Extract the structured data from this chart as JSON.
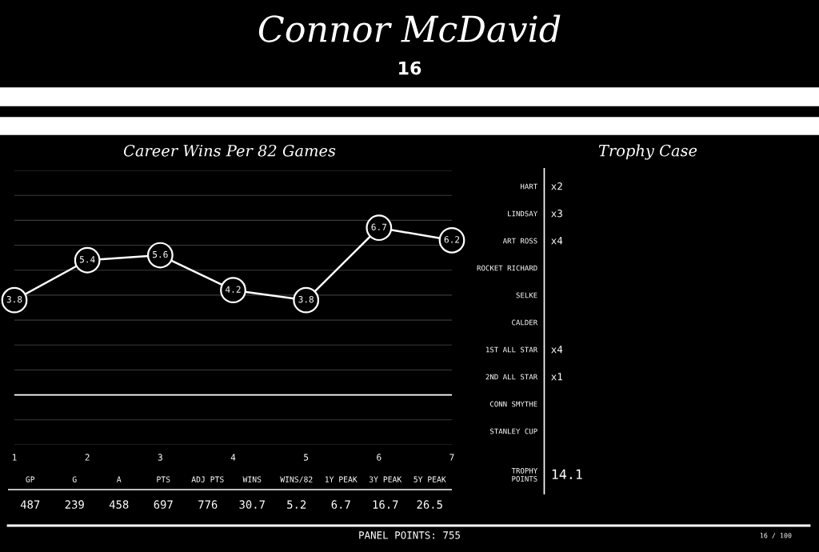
{
  "chart_data": [
    {
      "type": "other",
      "title": "Connor McDavid",
      "subtitle": "16",
      "annotations": [
        "PANEL POINTS: 755",
        "16 / 100"
      ]
    },
    {
      "type": "line",
      "title": "Career Wins Per 82 Games",
      "x": [
        1,
        2,
        3,
        4,
        5,
        6,
        7
      ],
      "values": [
        3.8,
        5.4,
        5.6,
        4.2,
        3.8,
        6.7,
        6.2
      ],
      "color": "#ffffff",
      "xlim": [
        1,
        7
      ],
      "xticks": [
        1,
        2,
        3,
        4,
        5,
        6,
        7
      ],
      "ylim": [
        -2,
        9
      ],
      "yticks": [
        {
          "value": -2,
          "label": null
        },
        {
          "value": -1,
          "label": null
        },
        {
          "value": 0,
          "label": null
        },
        {
          "value": 1,
          "label": null
        },
        {
          "value": 2,
          "label": null
        },
        {
          "value": 3,
          "label": null
        },
        {
          "value": 4,
          "label": null
        },
        {
          "value": 5,
          "label": null
        },
        {
          "value": 6,
          "label": null
        },
        {
          "value": 7,
          "label": null
        },
        {
          "value": 8,
          "label": null
        },
        {
          "value": 9,
          "label": null
        }
      ],
      "grid": "y",
      "ref_lines": [
        {
          "axis": "y",
          "value": 0,
          "label": null,
          "color": "#ffffff"
        }
      ],
      "marker": "circle",
      "line_style": "solid",
      "data_labels": true
    },
    {
      "type": "other",
      "categories": [
        "GP",
        "G",
        "A",
        "PTS",
        "ADJ PTS",
        "WINS",
        "WINS/82",
        "1Y PEAK",
        "3Y PEAK",
        "5Y PEAK"
      ],
      "values": [
        487,
        239,
        458,
        697,
        776,
        30.7,
        5.2,
        6.7,
        16.7,
        26.5
      ],
      "data_labels": true
    },
    {
      "type": "other",
      "title": "Trophy Case",
      "categories": [
        "HART",
        "LINDSAY",
        "ART ROSS",
        "ROCKET RICHARD",
        "SELKE",
        "CALDER",
        "1ST ALL STAR",
        "2ND ALL STAR",
        "CONN SMYTHE",
        "STANLEY CUP",
        "TROPHY\nPOINTS"
      ],
      "values": [
        2,
        3,
        4,
        null,
        null,
        null,
        4,
        1,
        null,
        null,
        14.1
      ],
      "value_labels": [
        "x2",
        "x3",
        "x4",
        null,
        null,
        null,
        "x4",
        "x1",
        null,
        null,
        "14.1"
      ]
    }
  ]
}
